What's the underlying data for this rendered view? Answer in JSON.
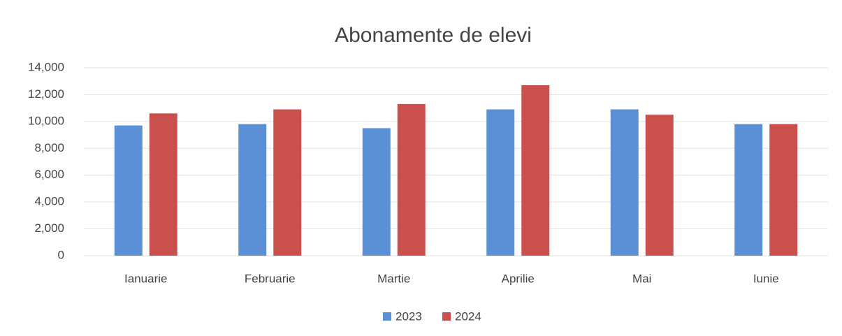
{
  "chart_data": {
    "type": "bar",
    "title": "Abonamente de elevi",
    "categories": [
      "Ianuarie",
      "Februarie",
      "Martie",
      "Aprilie",
      "Mai",
      "Iunie"
    ],
    "series": [
      {
        "name": "2023",
        "color": "#5b8fd6",
        "values": [
          9700,
          9800,
          9500,
          10900,
          10900,
          9800
        ]
      },
      {
        "name": "2024",
        "color": "#c9504d",
        "values": [
          10600,
          10900,
          11300,
          12700,
          10500,
          9800
        ]
      }
    ],
    "ylim": [
      0,
      14000
    ],
    "yticks": [
      0,
      {
        "value": 2000,
        "label": "2,000"
      },
      {
        "value": 4000,
        "label": "4,000"
      },
      {
        "value": 6000,
        "label": "6,000"
      },
      {
        "value": 8000,
        "label": "8,000"
      },
      {
        "value": 10000,
        "label": "10,000"
      },
      {
        "value": 12000,
        "label": "12,000"
      },
      {
        "value": 14000,
        "label": "14,000"
      }
    ],
    "grid": true,
    "legend": "bottom"
  }
}
